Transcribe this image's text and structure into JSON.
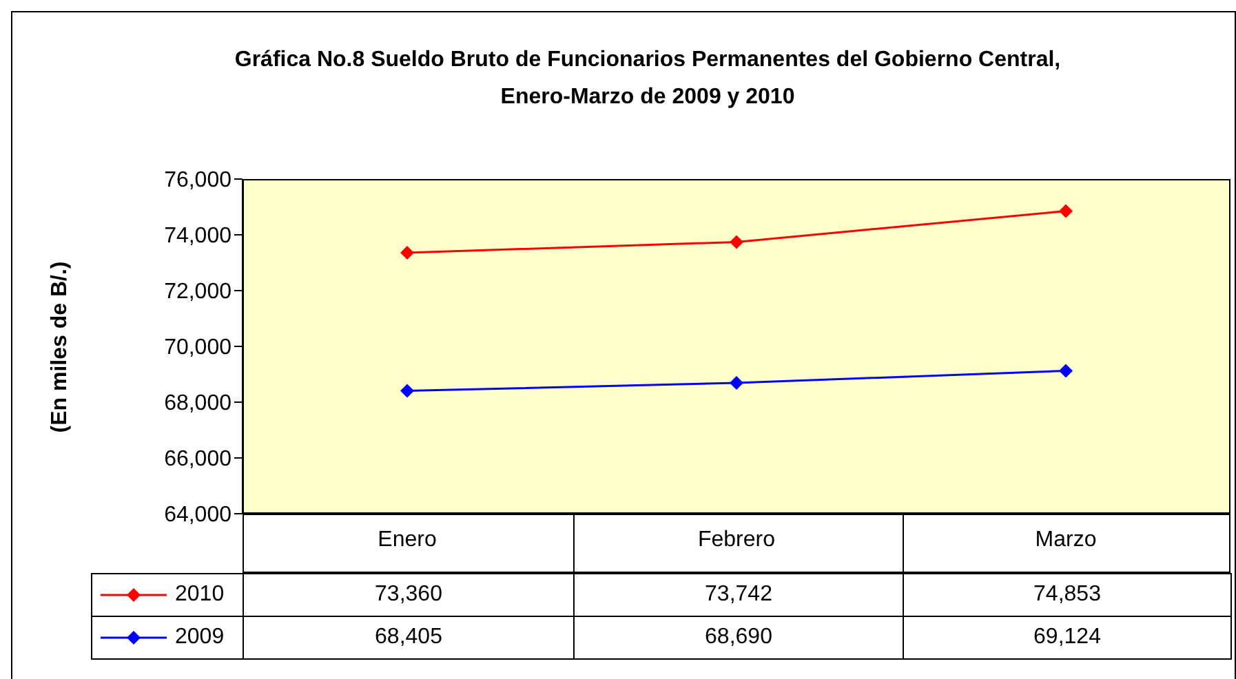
{
  "chart_data": {
    "type": "line",
    "title": "Gráfica No.8 Sueldo Bruto de Funcionarios Permanentes del Gobierno Central, Enero-Marzo de 2009 y 2010",
    "ylabel": "(En miles de B/.)",
    "categories": [
      "Enero",
      "Febrero",
      "Marzo"
    ],
    "series": [
      {
        "name": "2010",
        "color": "#ff0000",
        "values": [
          73360,
          73742,
          74853
        ],
        "value_labels": [
          "73,360",
          "73,742",
          "74,853"
        ]
      },
      {
        "name": "2009",
        "color": "#0000ff",
        "values": [
          68405,
          68690,
          69124
        ],
        "value_labels": [
          "68,405",
          "68,690",
          "69,124"
        ]
      }
    ],
    "ylim": [
      64000,
      76000
    ],
    "yticks": [
      {
        "value": 64000,
        "label": "64,000"
      },
      {
        "value": 66000,
        "label": "66,000"
      },
      {
        "value": 68000,
        "label": "68,000"
      },
      {
        "value": 70000,
        "label": "70,000"
      },
      {
        "value": 72000,
        "label": "72,000"
      },
      {
        "value": 74000,
        "label": "74,000"
      },
      {
        "value": 76000,
        "label": "76,000"
      }
    ],
    "grid": false,
    "legend": "bottom",
    "marker": "diamond",
    "line_style": "solid"
  }
}
